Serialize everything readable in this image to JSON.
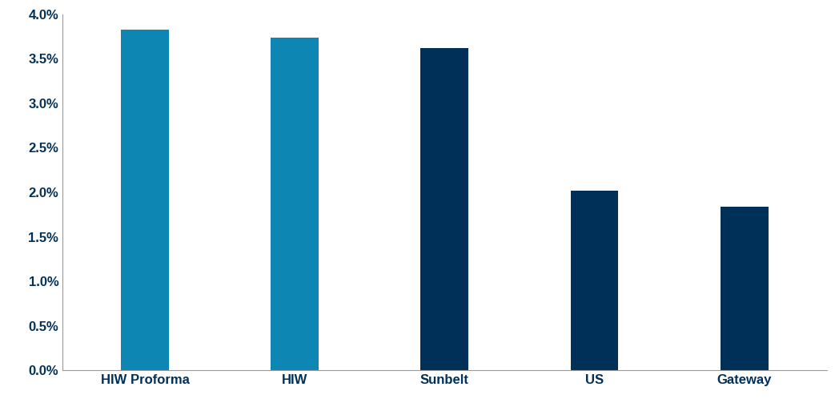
{
  "chart_data": {
    "type": "bar",
    "categories": [
      "HIW Proforma",
      "HIW",
      "Sunbelt",
      "US",
      "Gateway"
    ],
    "values": [
      3.83,
      3.74,
      3.62,
      2.02,
      1.84
    ],
    "colors": [
      "#0E86B4",
      "#0E86B4",
      "#003057",
      "#003057",
      "#003057"
    ],
    "ylim": [
      0,
      4
    ],
    "yticks": [
      {
        "value": 0,
        "label": "0.0%"
      },
      {
        "value": 0.5,
        "label": "0.5%"
      },
      {
        "value": 1,
        "label": "1.0%"
      },
      {
        "value": 1.5,
        "label": "1.5%"
      },
      {
        "value": 2,
        "label": "2.0%"
      },
      {
        "value": 2.5,
        "label": "2.5%"
      },
      {
        "value": 3,
        "label": "3.0%"
      },
      {
        "value": 3.5,
        "label": "3.5%"
      },
      {
        "value": 4,
        "label": "4.0%"
      }
    ],
    "grid": false
  }
}
